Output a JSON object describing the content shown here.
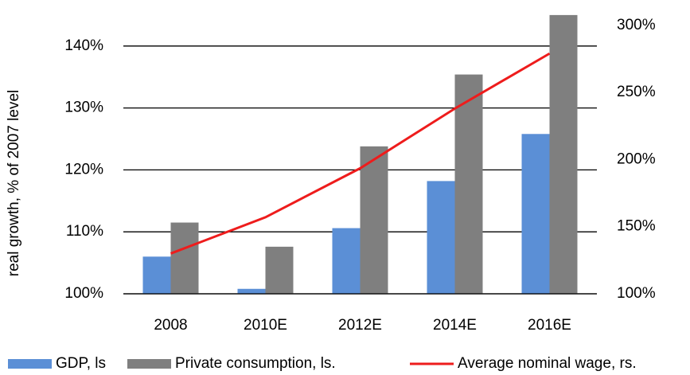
{
  "chart_data": {
    "type": "bar",
    "y_label": "real growth, % of 2007 level",
    "categories": [
      "2008",
      "2010E",
      "2012E",
      "2014E",
      "2016E"
    ],
    "series": [
      {
        "name": "GDP, ls",
        "color": "#5b8fd6",
        "values": [
          106,
          100.8,
          110.6,
          118.2,
          125.8
        ]
      },
      {
        "name": "Private consumption, ls.",
        "color": "#7f7f7f",
        "values": [
          111.5,
          107.6,
          123.8,
          135.4,
          145
        ]
      },
      {
        "name": "Average nominal wage, rs.",
        "color": "#ee1c1c",
        "type": "line",
        "axis": "y2",
        "values": [
          130,
          157,
          193.5,
          238,
          279
        ]
      }
    ],
    "ylim": [
      100,
      145.5
    ],
    "yticks": [
      {
        "value": 100,
        "label": "100%"
      },
      {
        "value": 110,
        "label": "110%"
      },
      {
        "value": 120,
        "label": "120%"
      },
      {
        "value": 130,
        "label": "130%"
      },
      {
        "value": 140,
        "label": "140%"
      }
    ],
    "y2lim": [
      100,
      310
    ],
    "y2ticks": [
      {
        "value": 100,
        "label": "100%"
      },
      {
        "value": 150,
        "label": "150%"
      },
      {
        "value": 200,
        "label": "200%"
      },
      {
        "value": 250,
        "label": "250%"
      },
      {
        "value": 300,
        "label": "300%"
      }
    ],
    "grid": true,
    "legend": "bottom"
  }
}
